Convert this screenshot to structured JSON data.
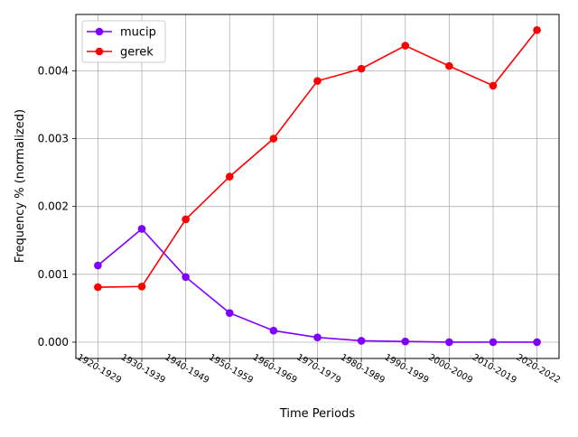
{
  "chart_data": {
    "type": "line",
    "title": "",
    "xlabel": "Time Periods",
    "ylabel": "Frequency % (normalized)",
    "categories": [
      "1920-1929",
      "1930-1939",
      "1940-1949",
      "1950-1959",
      "1960-1969",
      "1970-1979",
      "1980-1989",
      "1990-1999",
      "2000-2009",
      "2010-2019",
      "2020-2022"
    ],
    "ylim": [
      -0.00024,
      0.00483
    ],
    "yticks": [
      0.0,
      0.001,
      0.002,
      0.003,
      0.004
    ],
    "ytick_labels": [
      "0.000",
      "0.001",
      "0.002",
      "0.003",
      "0.004"
    ],
    "grid": true,
    "legend": "top-left",
    "series": [
      {
        "name": "mucip",
        "color": "#7f00ff",
        "marker": "circle",
        "values": [
          0.00113,
          0.00167,
          0.00096,
          0.00043,
          0.00017,
          7e-05,
          2e-05,
          1e-05,
          0.0,
          0.0,
          0.0
        ]
      },
      {
        "name": "gerek",
        "color": "#ff0000",
        "marker": "circle",
        "values": [
          0.00081,
          0.00082,
          0.00181,
          0.00244,
          0.003,
          0.00385,
          0.00403,
          0.00437,
          0.00407,
          0.00378,
          0.0046
        ]
      }
    ]
  }
}
